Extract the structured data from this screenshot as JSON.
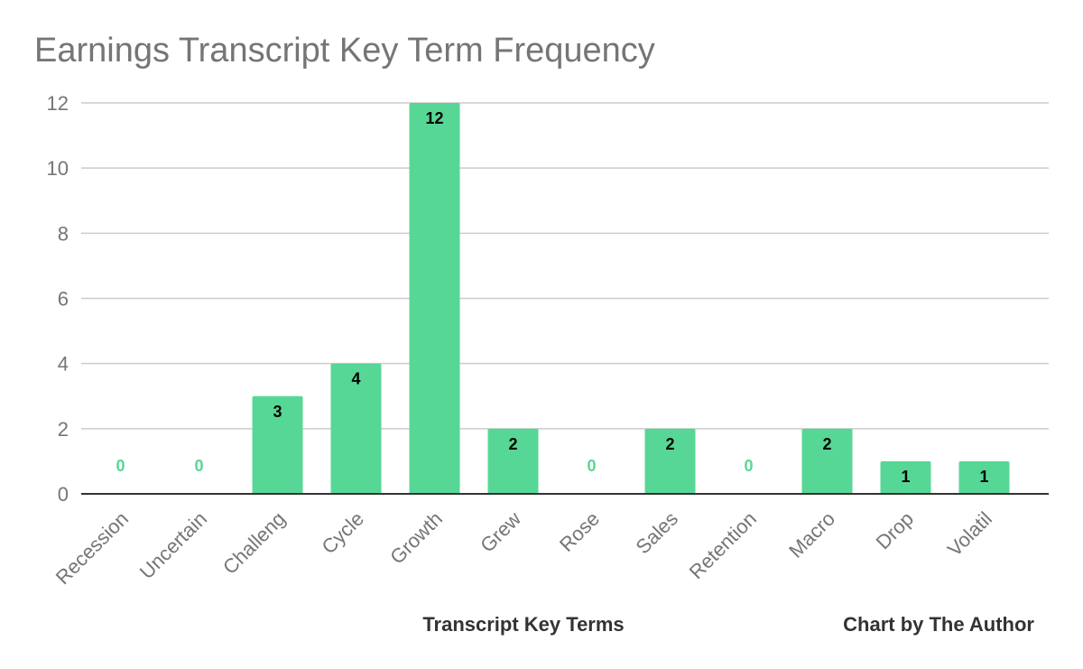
{
  "chart_data": {
    "type": "bar",
    "title": "Earnings Transcript Key Term Frequency",
    "xlabel": "Transcript Key Terms",
    "ylabel": "",
    "credit": "Chart by The Author",
    "categories": [
      "Recession",
      "Uncertain",
      "Challeng",
      "Cycle",
      "Growth",
      "Grew",
      "Rose",
      "Sales",
      "Retention",
      "Macro",
      "Drop",
      "Volatil"
    ],
    "values": [
      0,
      0,
      3,
      4,
      12,
      2,
      0,
      2,
      0,
      2,
      1,
      1
    ],
    "ylim": [
      0,
      12
    ],
    "yticks": [
      0,
      2,
      4,
      6,
      8,
      10,
      12
    ],
    "grid": true,
    "legend": "none",
    "data_labels": true
  },
  "colors": {
    "bar": "#57d795",
    "grid": "#cccccc",
    "axis": "#333333",
    "label_inside": "#000000",
    "label_zero": "#57d795"
  }
}
